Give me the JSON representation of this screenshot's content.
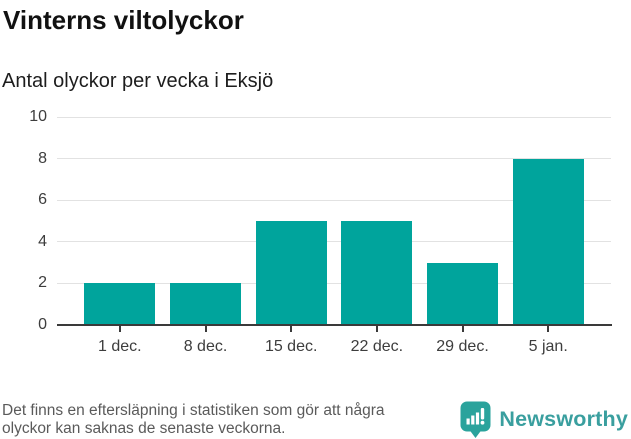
{
  "header": {
    "title": "Vinterns viltolyckor",
    "subtitle": "Antal olyckor per vecka i Eksjö"
  },
  "chart_data": {
    "type": "bar",
    "title": "Vinterns viltolyckor",
    "subtitle": "Antal olyckor per vecka i Eksjö",
    "categories": [
      "1 dec.",
      "8 dec.",
      "15 dec.",
      "22 dec.",
      "29 dec.",
      "5 jan."
    ],
    "values": [
      2,
      2,
      5,
      5,
      3,
      8
    ],
    "xlabel": "",
    "ylabel": "",
    "ylim": [
      0,
      10
    ],
    "yticks": [
      0,
      2,
      4,
      6,
      8,
      10
    ],
    "grid": "horizontal",
    "legend": "none",
    "bar_color": "#00a49c",
    "gridline_color": "#e2e2e2",
    "axis_color": "#3a3a3a"
  },
  "footer": {
    "note": "Det finns en eftersläpning i statistiken som gör att några\nolyckor kan saknas de senaste veckorna.",
    "brand": "Newsworthy",
    "brand_color": "#3a9f9f",
    "icon_color": "#2aa39c",
    "icon_name": "newsworthy-chart-bubble-icon"
  }
}
